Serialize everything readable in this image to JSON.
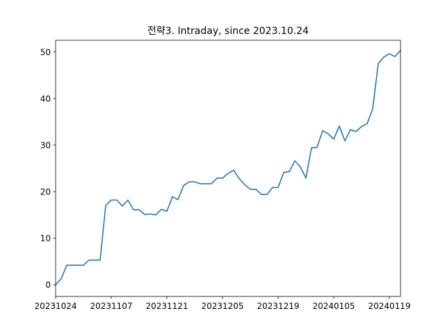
{
  "chart_data": {
    "type": "line",
    "title": "전략3. Intraday, since 2023.10.24",
    "xlabel": "",
    "ylabel": "",
    "x_tick_labels": [
      "20231024",
      "20231107",
      "20231121",
      "20231205",
      "20231219",
      "20240105",
      "20240119"
    ],
    "y_ticks": [
      0,
      10,
      20,
      30,
      40,
      50
    ],
    "xlim": [
      0,
      62
    ],
    "ylim": [
      -2.5,
      52.5
    ],
    "grid": false,
    "legend": "none",
    "line_color": "#1f77b4",
    "series": [
      {
        "x": [
          0,
          1,
          2,
          3,
          4,
          5,
          6,
          7,
          8,
          9,
          10,
          11,
          12,
          13,
          14,
          15,
          16,
          17,
          18,
          19,
          20,
          21,
          22,
          23,
          24,
          25,
          26,
          27,
          28,
          29,
          30,
          31,
          32,
          33,
          34,
          35,
          36,
          37,
          38,
          39,
          40,
          41,
          42,
          43,
          44,
          45,
          46,
          47,
          48,
          49,
          50,
          51,
          52,
          53,
          54,
          55,
          56,
          57,
          58,
          59,
          60,
          61,
          62
        ],
        "values": [
          0,
          1.3,
          4.2,
          4.2,
          4.2,
          4.2,
          5.3,
          5.3,
          5.3,
          17.0,
          18.2,
          18.2,
          16.9,
          18.2,
          16.1,
          16.1,
          15.1,
          15.2,
          15.0,
          16.2,
          15.8,
          18.9,
          18.3,
          21.3,
          22.1,
          22.1,
          21.7,
          21.7,
          21.7,
          22.9,
          22.9,
          23.9,
          24.6,
          22.8,
          21.5,
          20.5,
          20.5,
          19.4,
          19.4,
          20.9,
          20.9,
          24.1,
          24.3,
          26.6,
          25.3,
          22.9,
          29.4,
          29.5,
          33.1,
          32.4,
          31.3,
          34.1,
          30.9,
          33.3,
          32.9,
          34.0,
          34.6,
          37.8,
          47.5,
          48.9,
          49.6,
          49.0,
          50.3
        ]
      }
    ]
  }
}
